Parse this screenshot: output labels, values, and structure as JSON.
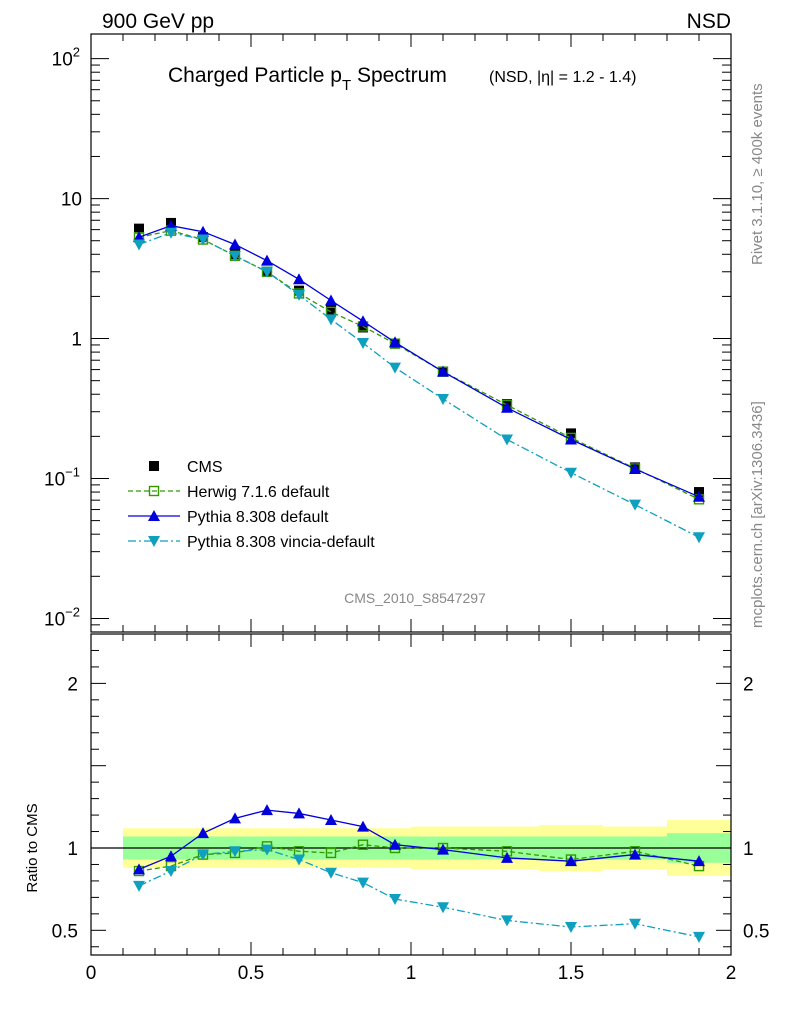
{
  "header": {
    "left": "900 GeV pp",
    "right": "NSD"
  },
  "side": {
    "rivet": "Rivet 3.1.10, ≥ 400k events",
    "mcplots": "mcplots.cern.ch [arXiv:1306.3436]"
  },
  "chart_data": [
    {
      "type": "line",
      "panel": "main",
      "title_main": "Charged Particle p",
      "title_sub": "T",
      "title_main2": " Spectrum",
      "title_extra": "(NSD, |η| = 1.2 - 1.4)",
      "watermark": "CMS_2010_S8547297",
      "yscale": "log",
      "xlim": [
        0,
        2
      ],
      "ylim": [
        0.008,
        150
      ],
      "y_ticks": [
        {
          "v": 0.01,
          "base": "10",
          "exp": "−2"
        },
        {
          "v": 0.1,
          "base": "10",
          "exp": "−1"
        },
        {
          "v": 1,
          "base": "1",
          "exp": ""
        },
        {
          "v": 10,
          "base": "10",
          "exp": ""
        },
        {
          "v": 100,
          "base": "10",
          "exp": "2"
        }
      ],
      "x": [
        0.15,
        0.25,
        0.35,
        0.45,
        0.55,
        0.65,
        0.75,
        0.85,
        0.95,
        1.1,
        1.3,
        1.5,
        1.7,
        1.9
      ],
      "series": [
        {
          "name": "CMS",
          "color": "#000000",
          "marker": "square-filled",
          "line": "none",
          "values": [
            6.1,
            6.7,
            5.3,
            4.0,
            3.0,
            2.2,
            1.6,
            1.2,
            0.92,
            0.58,
            0.34,
            0.21,
            0.12,
            0.08
          ]
        },
        {
          "name": "Herwig 7.1.6 default",
          "color": "#339900",
          "marker": "square-open",
          "line": "dashed",
          "values": [
            5.3,
            5.9,
            5.1,
            3.9,
            3.0,
            2.1,
            1.55,
            1.22,
            0.92,
            0.58,
            0.335,
            0.195,
            0.118,
            0.071
          ]
        },
        {
          "name": "Pythia 8.308 default",
          "color": "#0000dd",
          "marker": "triangle-up",
          "line": "solid",
          "values": [
            5.3,
            6.4,
            5.8,
            4.7,
            3.6,
            2.65,
            1.87,
            1.33,
            0.94,
            0.58,
            0.32,
            0.19,
            0.117,
            0.074
          ]
        },
        {
          "name": "Pythia 8.308 vincia-default",
          "color": "#0f9fbf",
          "marker": "triangle-down",
          "line": "dashdot",
          "values": [
            4.7,
            5.7,
            5.1,
            3.9,
            3.0,
            2.05,
            1.37,
            0.93,
            0.62,
            0.37,
            0.19,
            0.11,
            0.065,
            0.038
          ]
        }
      ]
    },
    {
      "type": "line",
      "panel": "ratio",
      "ylabel": "Ratio to CMS",
      "xlim": [
        0,
        2
      ],
      "ylim": [
        0.35,
        2.3
      ],
      "x_ticks": [
        {
          "v": 0,
          "label": "0"
        },
        {
          "v": 0.5,
          "label": "0.5"
        },
        {
          "v": 1,
          "label": "1"
        },
        {
          "v": 1.5,
          "label": "1.5"
        },
        {
          "v": 2,
          "label": "2"
        }
      ],
      "y_ticks": [
        {
          "v": 0.5,
          "label": "0.5"
        },
        {
          "v": 1,
          "label": "1"
        },
        {
          "v": 2,
          "label": "2"
        }
      ],
      "bands": {
        "bins": [
          [
            0.1,
            0.2
          ],
          [
            0.2,
            0.3
          ],
          [
            0.3,
            0.4
          ],
          [
            0.4,
            0.5
          ],
          [
            0.5,
            0.6
          ],
          [
            0.6,
            0.7
          ],
          [
            0.7,
            0.8
          ],
          [
            0.8,
            0.9
          ],
          [
            0.9,
            1.0
          ],
          [
            1.0,
            1.2
          ],
          [
            1.2,
            1.4
          ],
          [
            1.4,
            1.6
          ],
          [
            1.6,
            1.8
          ],
          [
            1.8,
            2.0
          ]
        ],
        "stat": [
          0.07,
          0.07,
          0.07,
          0.07,
          0.07,
          0.07,
          0.07,
          0.07,
          0.07,
          0.07,
          0.07,
          0.07,
          0.07,
          0.09
        ],
        "total": [
          0.12,
          0.12,
          0.12,
          0.12,
          0.12,
          0.12,
          0.12,
          0.12,
          0.12,
          0.13,
          0.13,
          0.14,
          0.13,
          0.17
        ],
        "stat_color": "#99ff99",
        "total_color": "#ffff99"
      },
      "x": [
        0.15,
        0.25,
        0.35,
        0.45,
        0.55,
        0.65,
        0.75,
        0.85,
        0.95,
        1.1,
        1.3,
        1.5,
        1.7,
        1.9
      ],
      "series": [
        {
          "name": "Herwig 7.1.6 default",
          "color": "#339900",
          "marker": "square-open",
          "line": "dashed",
          "values": [
            0.86,
            0.89,
            0.96,
            0.97,
            1.01,
            0.98,
            0.97,
            1.02,
            1.0,
            1.0,
            0.98,
            0.93,
            0.98,
            0.89
          ]
        },
        {
          "name": "Pythia 8.308 default",
          "color": "#0000dd",
          "marker": "triangle-up",
          "line": "solid",
          "values": [
            0.87,
            0.95,
            1.09,
            1.18,
            1.23,
            1.21,
            1.17,
            1.13,
            1.02,
            0.99,
            0.94,
            0.92,
            0.96,
            0.92
          ]
        },
        {
          "name": "Pythia 8.308 vincia-default",
          "color": "#0f9fbf",
          "marker": "triangle-down",
          "line": "dashdot",
          "values": [
            0.77,
            0.86,
            0.96,
            0.98,
            0.99,
            0.93,
            0.85,
            0.79,
            0.69,
            0.64,
            0.56,
            0.52,
            0.54,
            0.46
          ]
        }
      ]
    }
  ]
}
